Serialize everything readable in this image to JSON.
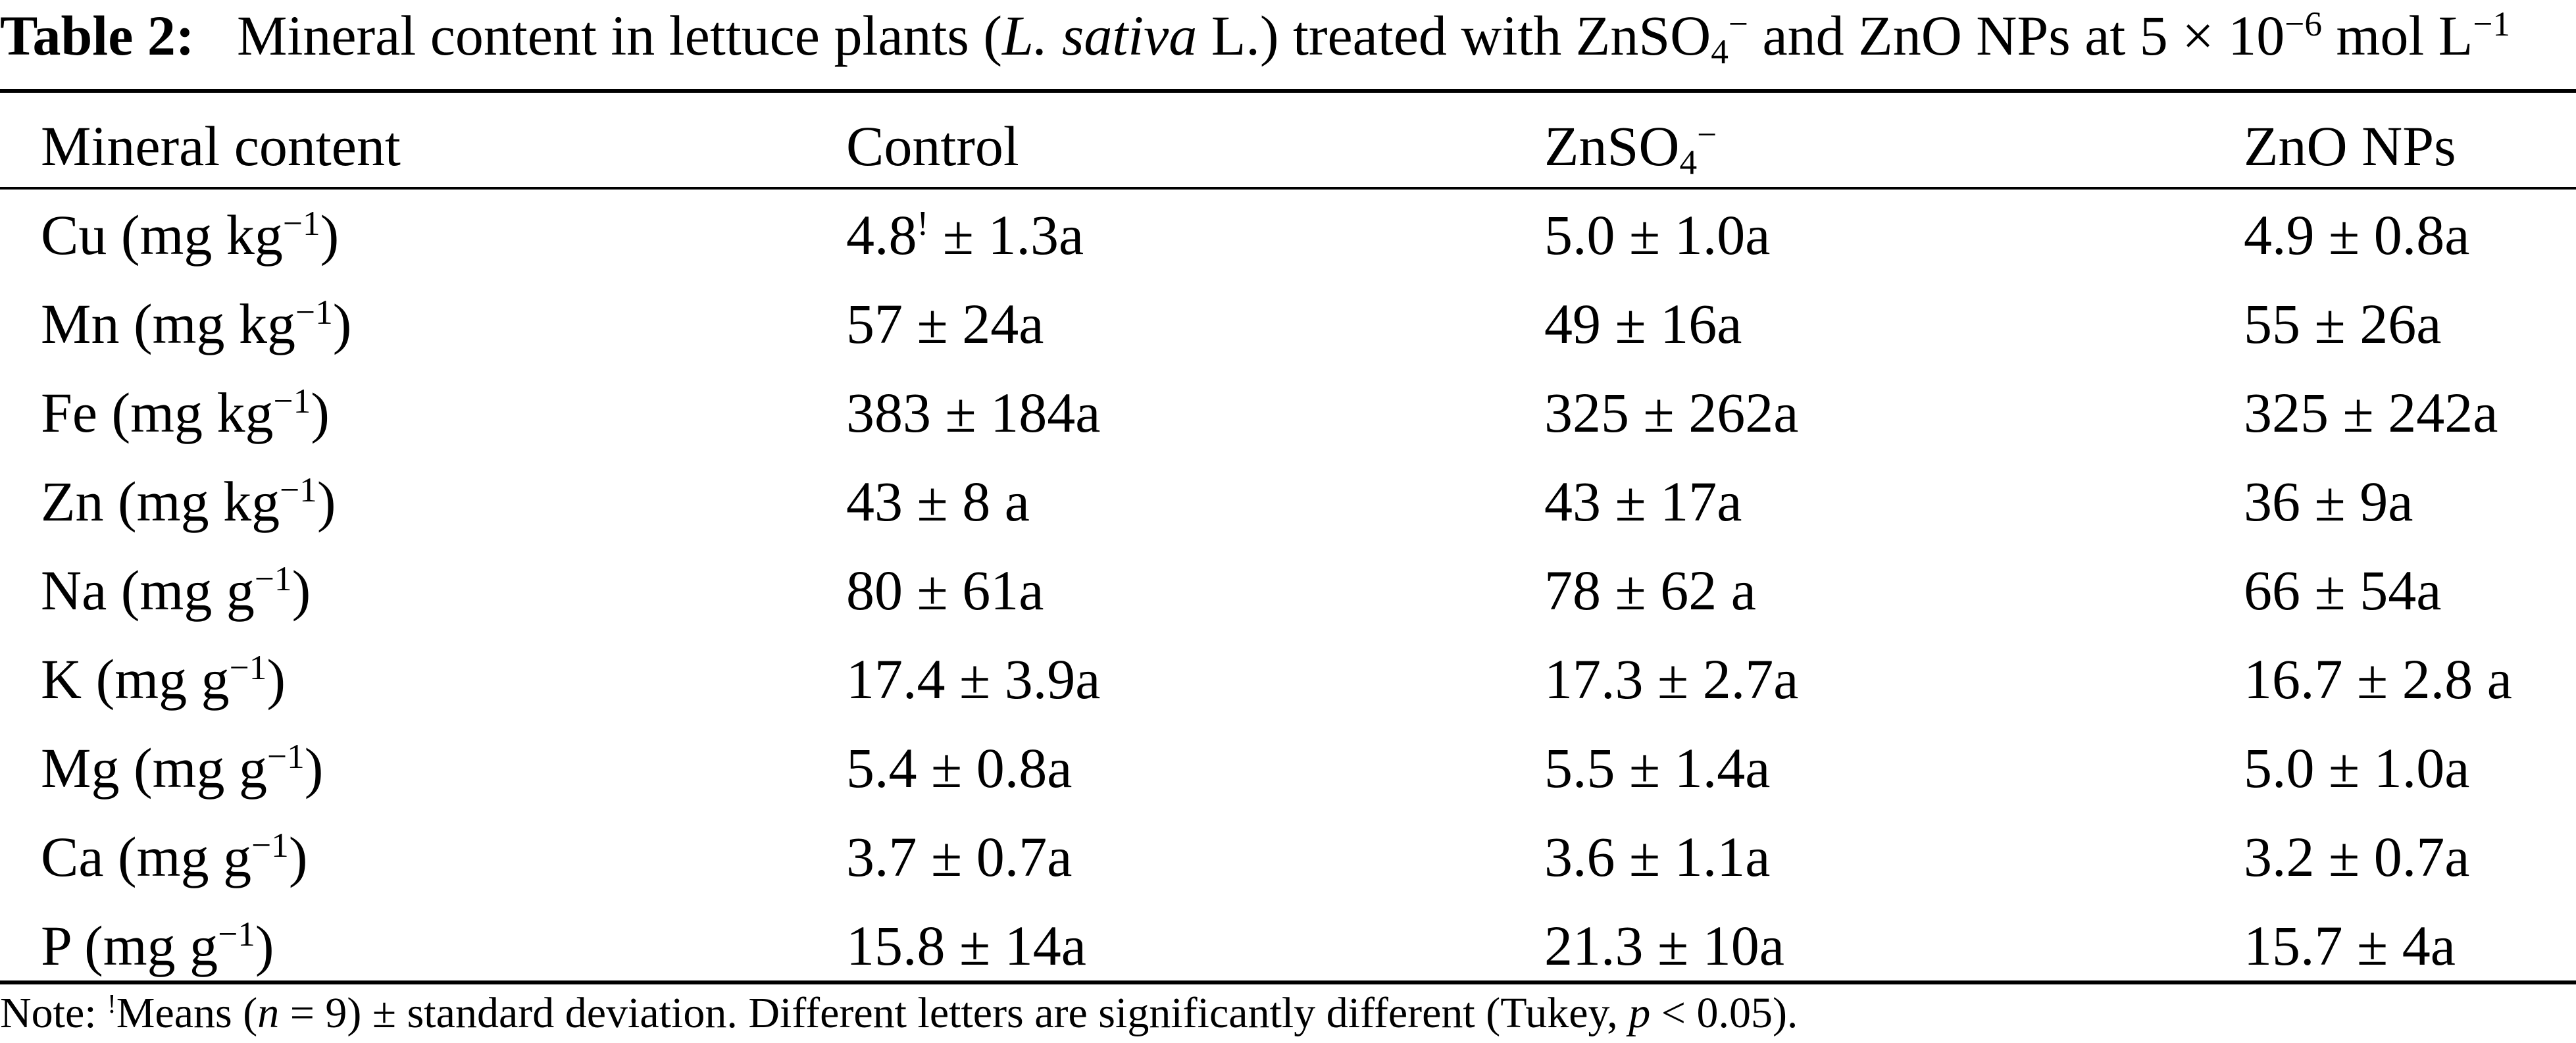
{
  "caption": {
    "label": "Table 2:",
    "text_before_species": "Mineral content in lettuce plants (",
    "species": "L. sativa",
    "text_after_species": " L.) treated with ZnSO",
    "sub": "4",
    "sup": "−",
    "text_mid": " and ZnO NPs at 5 × 10",
    "exp": "−6",
    "text_unit": " mol L",
    "unit_exp": "−1"
  },
  "columns": {
    "mineral": "Mineral content",
    "control": "Control",
    "znso4_base": "ZnSO",
    "znso4_sub": "4",
    "znso4_sup": "−",
    "zno": "ZnO NPs"
  },
  "rows": [
    {
      "element": "Cu",
      "unit": " (mg kg",
      "exp": "−1",
      "close": ")",
      "control": "4.8",
      "control_mark": "!",
      "control_rest": " ± 1.3a",
      "znso4": "5.0 ± 1.0a",
      "zno": "4.9 ± 0.8a"
    },
    {
      "element": "Mn",
      "unit": " (mg kg",
      "exp": "−1",
      "close": ")",
      "control": "57 ± 24a",
      "znso4": "49 ± 16a",
      "zno": "55 ± 26a"
    },
    {
      "element": "Fe",
      "unit": " (mg kg",
      "exp": "−1",
      "close": ")",
      "control": "383 ± 184a",
      "znso4": "325 ± 262a",
      "zno": "325 ± 242a"
    },
    {
      "element": "Zn",
      "unit": " (mg kg",
      "exp": "−1",
      "close": ")",
      "control": "43 ± 8 a",
      "znso4": "43 ± 17a",
      "zno": "36 ± 9a"
    },
    {
      "element": "Na",
      "unit": " (mg g",
      "exp": "−1",
      "close": ")",
      "control": "80 ± 61a",
      "znso4": "78 ± 62 a",
      "zno": "66 ± 54a"
    },
    {
      "element": "K",
      "unit": " (mg g",
      "exp": "−1",
      "close": ")",
      "control": "17.4 ± 3.9a",
      "znso4": "17.3 ± 2.7a",
      "zno": "16.7 ± 2.8 a"
    },
    {
      "element": "Mg",
      "unit": " (mg g",
      "exp": "−1",
      "close": ")",
      "control": "5.4 ± 0.8a",
      "znso4": "5.5 ± 1.4a",
      "zno": "5.0 ± 1.0a"
    },
    {
      "element": "Ca",
      "unit": " (mg g",
      "exp": "−1",
      "close": ")",
      "control": "3.7 ± 0.7a",
      "znso4": "3.6 ± 1.1a",
      "zno": "3.2 ± 0.7a"
    },
    {
      "element": "P",
      "unit": " (mg g",
      "exp": "−1",
      "close": ")",
      "control": "15.8 ± 14a",
      "znso4": "21.3 ± 10a",
      "zno": "15.7 ± 4a"
    }
  ],
  "note": {
    "prefix": "Note: ",
    "mark": "!",
    "text1": "Means (",
    "n_var": "n",
    "text2": " = 9) ± standard deviation. Different letters are significantly different (Tukey, ",
    "p_var": "p",
    "text3": " < 0.05)."
  }
}
